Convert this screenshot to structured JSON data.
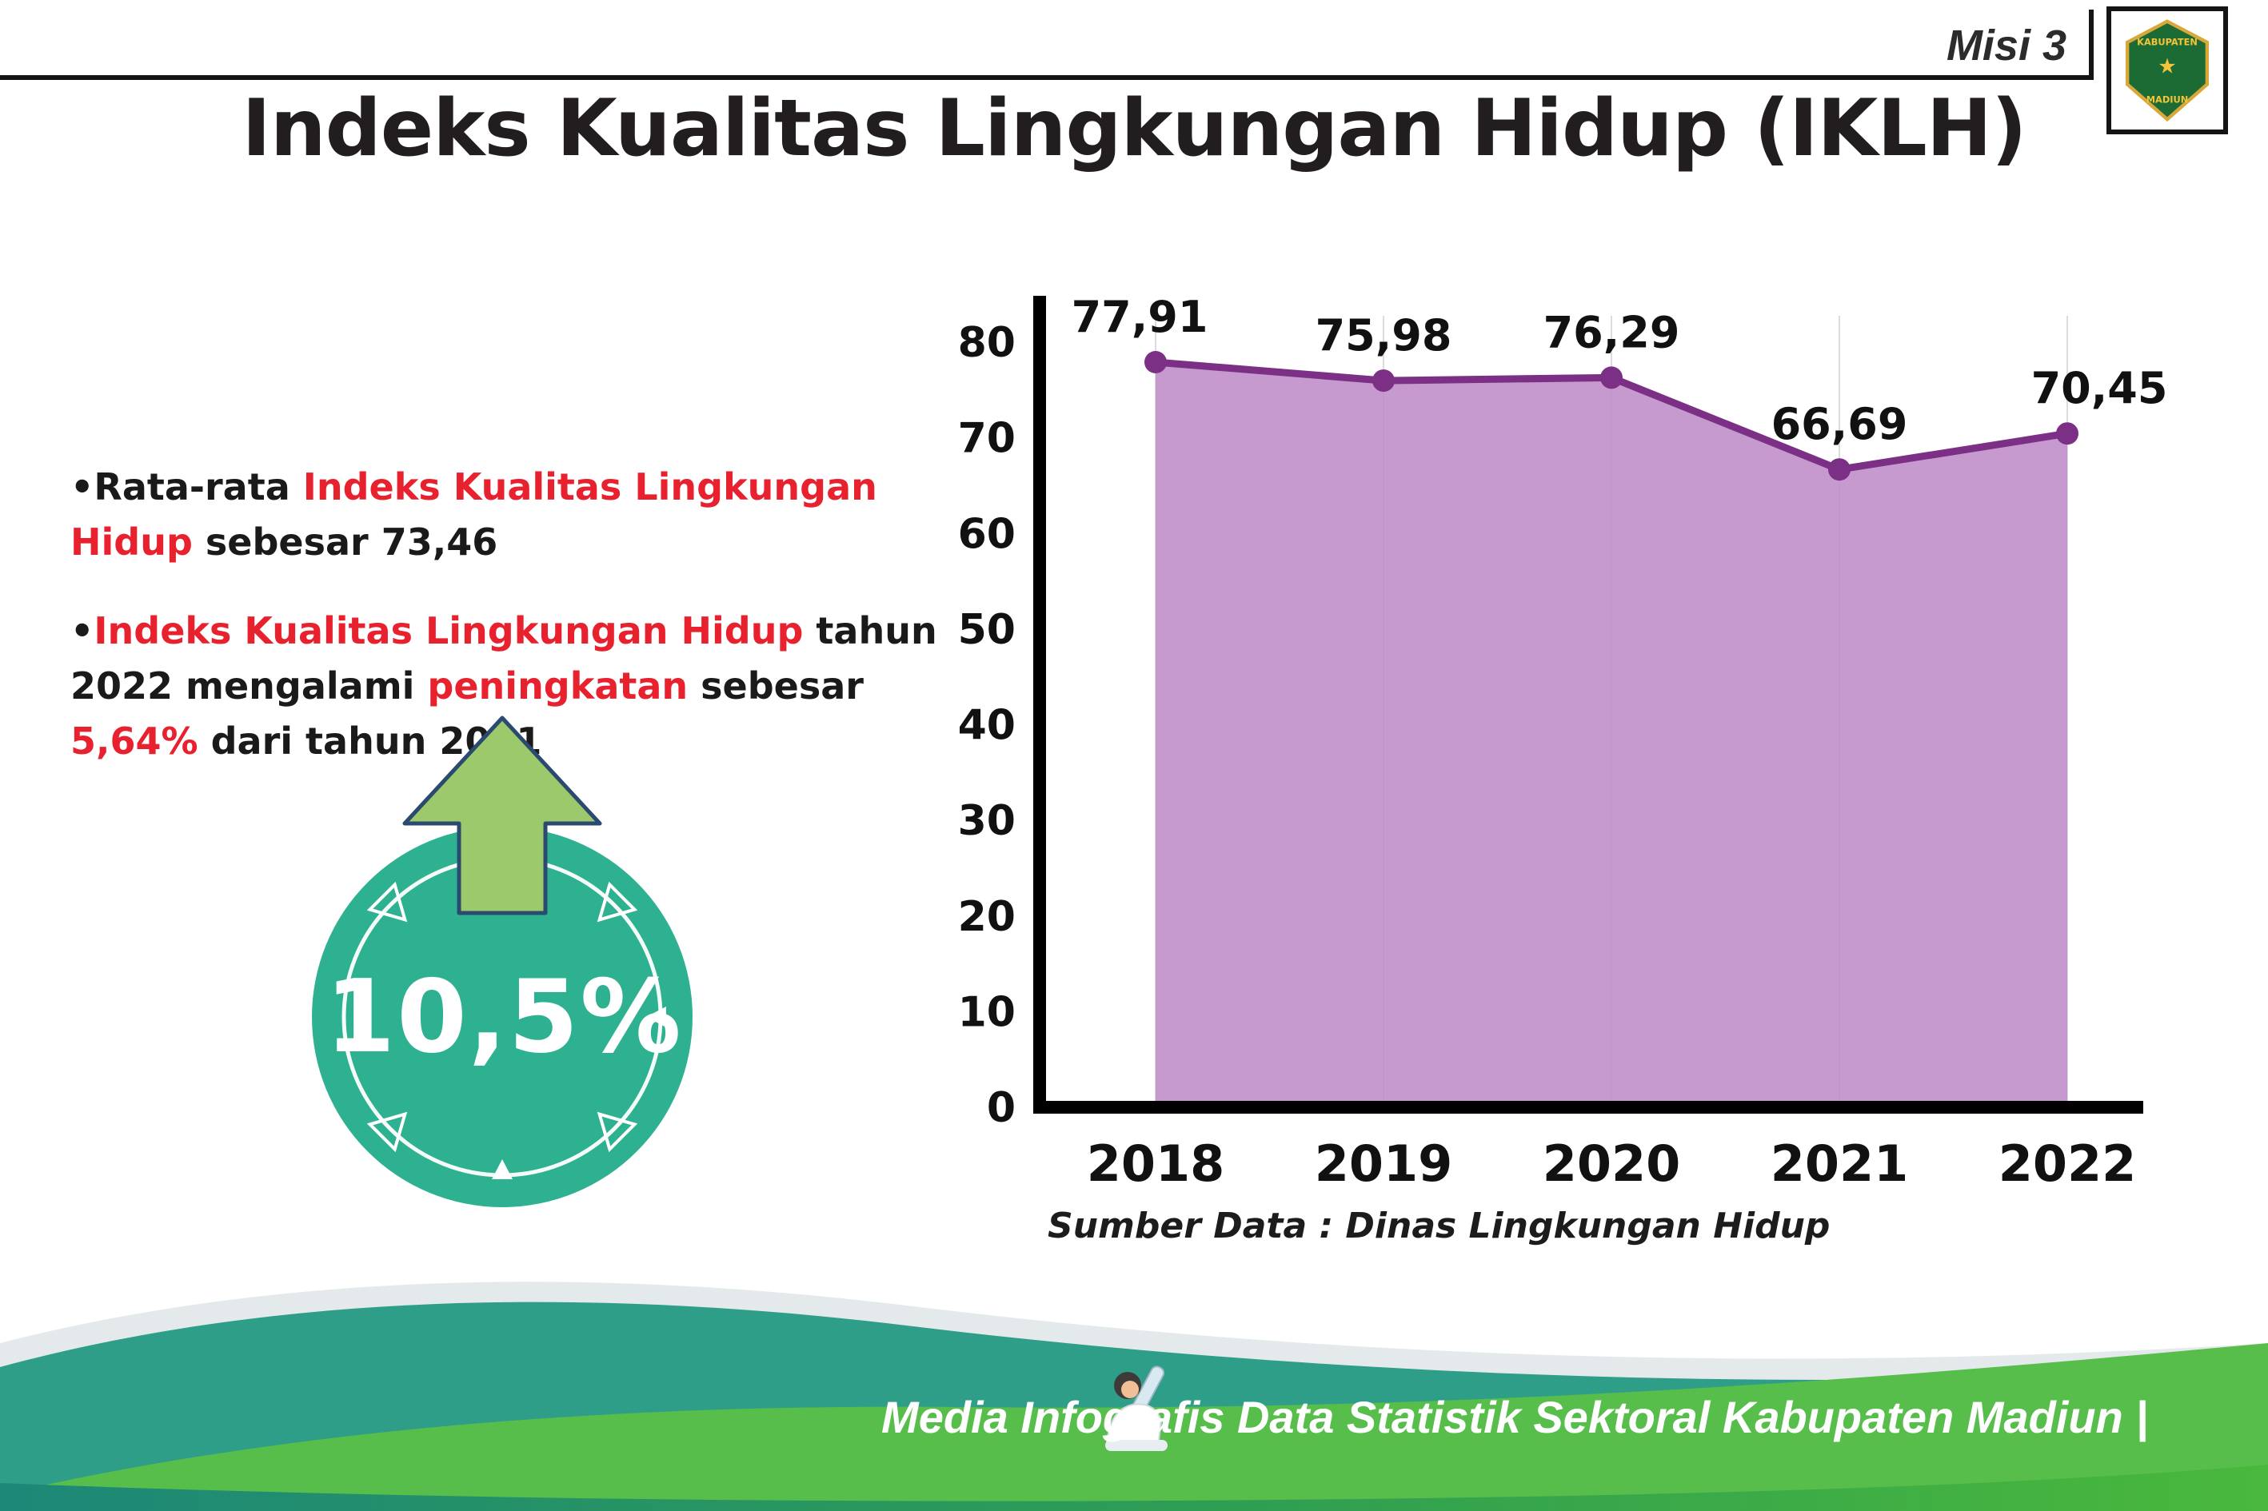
{
  "header": {
    "misi": "Misi 3",
    "title": "Indeks Kualitas Lingkungan Hidup (IKLH)"
  },
  "logo": {
    "top": "KABUPATEN",
    "bottom": "MADIUN"
  },
  "bullets": {
    "bullet1": {
      "pre": "•Rata-rata ",
      "red": "Indeks Kualitas Lingkungan Hidup",
      "post": " sebesar 73,46"
    },
    "bullet2": {
      "pre": "•",
      "red1": "Indeks Kualitas Lingkungan Hidup",
      "mid1": " tahun 2022 mengalami ",
      "red2": "peningkatan",
      "mid2": " sebesar ",
      "red3": "5,64%",
      "post": " dari tahun 2021"
    }
  },
  "badge": {
    "value": "10,5%"
  },
  "chart_data": {
    "type": "area",
    "title": "Indeks Kualitas Lingkungan Hidup (IKLH)",
    "categories": [
      "2018",
      "2019",
      "2020",
      "2021",
      "2022"
    ],
    "values": [
      77.91,
      75.98,
      76.29,
      66.69,
      70.45
    ],
    "labels": [
      "77,91",
      "75,98",
      "76,29",
      "66,69",
      "70,45"
    ],
    "ylim": [
      0,
      80
    ],
    "yticks": [
      0,
      10,
      20,
      30,
      40,
      50,
      60,
      70,
      80
    ],
    "grid": "faint vertical",
    "legend": "none",
    "source": "Sumber Data : Dinas Lingkungan Hidup",
    "fill_color": "#bf8cc8",
    "line_color": "#7b2f85"
  },
  "footer": {
    "credit": "Media Infografis Data Statistik Sektoral Kabupaten Madiun |"
  },
  "colors": {
    "accent_red": "#e8212e",
    "badge_teal": "#2eb191",
    "arrow_green": "#9cc96b",
    "footer_teal": "#2f9e88",
    "footer_green": "#57be4b",
    "ink": "#221e1f"
  }
}
